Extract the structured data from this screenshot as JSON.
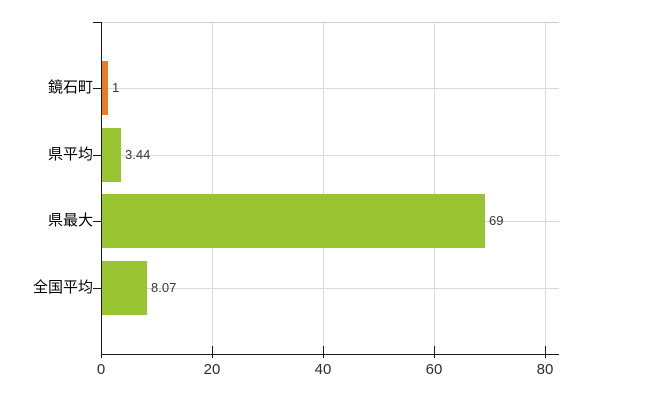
{
  "chart_data": {
    "type": "bar",
    "orientation": "horizontal",
    "title": "",
    "categories": [
      "鏡石町",
      "県平均",
      "県最大",
      "全国平均"
    ],
    "values": [
      1,
      3.44,
      69,
      8.07
    ],
    "value_labels": [
      "1",
      "3.44",
      "69",
      "8.07"
    ],
    "series": [
      {
        "name": "value",
        "values": [
          1,
          3.44,
          69,
          8.07
        ]
      }
    ],
    "bar_colors": [
      "#e87e23",
      "#98c431",
      "#98c431",
      "#98c431"
    ],
    "x_tick_labels": [
      "0",
      "20",
      "40",
      "60",
      "80"
    ],
    "x_tick_values": [
      0,
      20,
      40,
      60,
      80
    ],
    "xlim": [
      0,
      80
    ],
    "xlabel": "",
    "ylabel": "",
    "grid": true,
    "legend_position": "none"
  },
  "colors": {
    "background": "#ffffff",
    "grid": "#d9d9d9",
    "plot_border": "#cfcfcf",
    "axis": "#1a1a1a",
    "category_label": "#000000",
    "value_label": "#383838",
    "tick_label": "#2e2e2e",
    "bar_green": "#98c431",
    "bar_orange": "#e87e23"
  }
}
